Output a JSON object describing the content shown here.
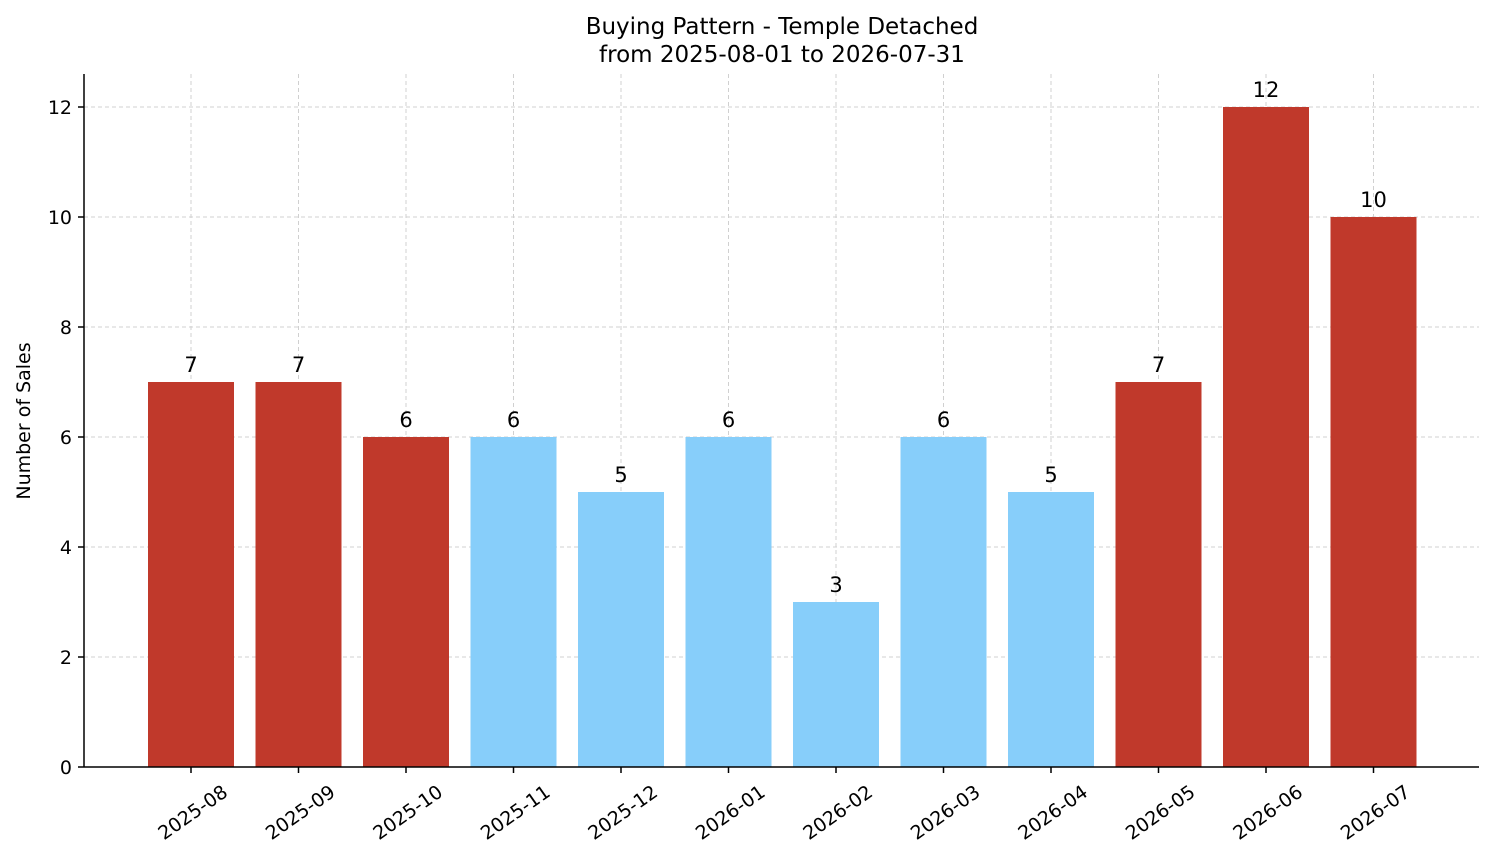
{
  "chart_data": {
    "type": "bar",
    "title_line1": "Buying Pattern - Temple Detached",
    "title_line2": "from 2025-08-01 to 2026-07-31",
    "xlabel": "",
    "ylabel": "Number of Sales",
    "categories": [
      "2025-08",
      "2025-09",
      "2025-10",
      "2025-11",
      "2025-12",
      "2026-01",
      "2026-02",
      "2026-03",
      "2026-04",
      "2026-05",
      "2026-06",
      "2026-07"
    ],
    "values": [
      7,
      7,
      6,
      6,
      5,
      6,
      3,
      6,
      5,
      7,
      12,
      10
    ],
    "bar_colors": [
      "#c0392b",
      "#c0392b",
      "#c0392b",
      "#87cefa",
      "#87cefa",
      "#87cefa",
      "#87cefa",
      "#87cefa",
      "#87cefa",
      "#c0392b",
      "#c0392b",
      "#c0392b"
    ],
    "ylim": [
      0,
      12.6
    ],
    "yticks": [
      0,
      2,
      4,
      6,
      8,
      10,
      12
    ],
    "grid": true,
    "data_labels": true
  }
}
